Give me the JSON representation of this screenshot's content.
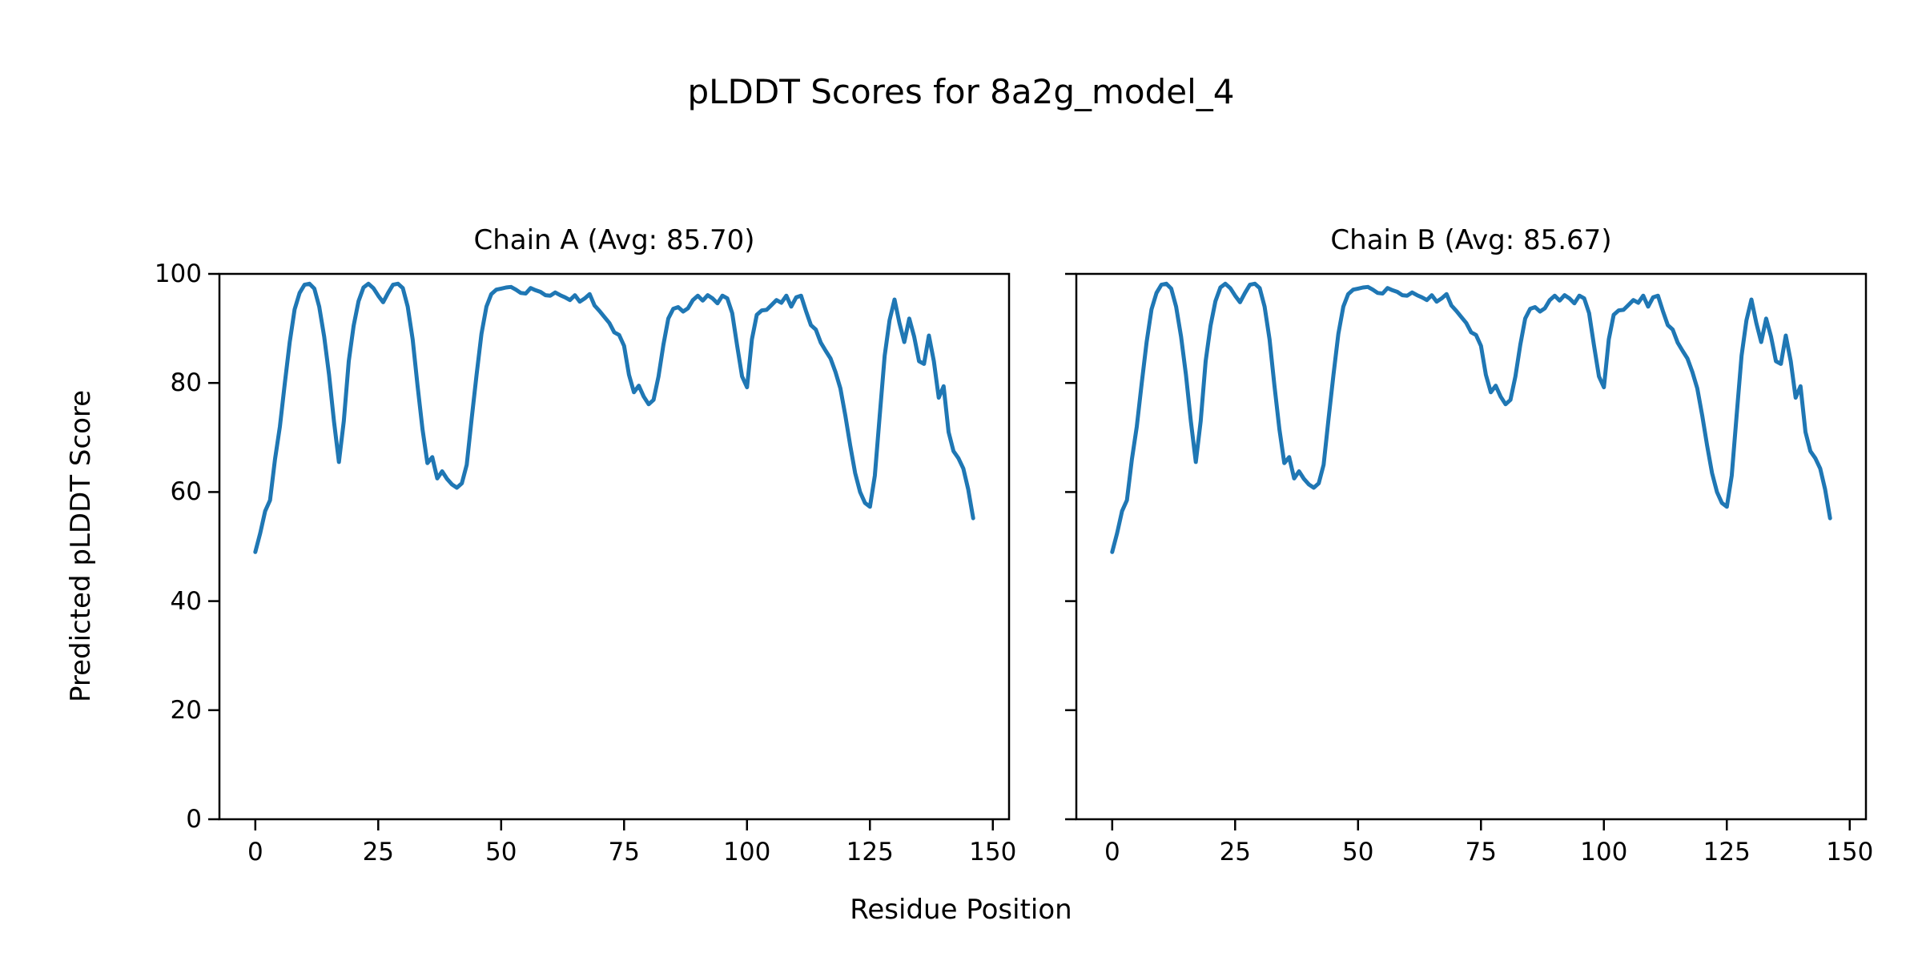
{
  "figure": {
    "title": "pLDDT Scores for 8a2g_model_4",
    "background": "#ffffff"
  },
  "style": {
    "line_color": "#1f77b4",
    "axis_color": "#000000",
    "text_color": "#000000"
  },
  "axes": {
    "xlabel": "Residue Position",
    "ylabel": "Predicted pLDDT Score",
    "x_ticks": [
      0,
      25,
      50,
      75,
      100,
      125,
      150
    ],
    "y_ticks": [
      0,
      20,
      40,
      60,
      80,
      100
    ],
    "xlim": [
      -7.3,
      153.3
    ],
    "ylim": [
      0,
      100
    ],
    "grid": false
  },
  "chart_data": [
    {
      "type": "line",
      "title": "Chain A (Avg: 85.70)",
      "series_name": "Chain A",
      "avg_label": "85.70",
      "x_start": 0,
      "x_step": 1,
      "values": [
        49.0,
        52.5,
        56.5,
        58.5,
        66.0,
        72.0,
        80.0,
        87.5,
        93.5,
        96.5,
        98.0,
        98.2,
        97.3,
        94.0,
        88.5,
        81.5,
        73.0,
        65.5,
        73.0,
        84.0,
        90.5,
        95.0,
        97.5,
        98.2,
        97.4,
        96.0,
        94.8,
        96.5,
        98.0,
        98.2,
        97.4,
        94.0,
        88.0,
        79.5,
        71.5,
        65.3,
        66.4,
        62.5,
        63.8,
        62.4,
        61.4,
        60.8,
        61.6,
        65.0,
        73.5,
        81.5,
        89.0,
        94.0,
        96.3,
        97.1,
        97.3,
        97.5,
        97.6,
        97.1,
        96.5,
        96.4,
        97.4,
        97.0,
        96.7,
        96.1,
        96.0,
        96.6,
        96.1,
        95.7,
        95.2,
        96.1,
        94.9,
        95.5,
        96.3,
        94.2,
        93.2,
        92.1,
        91.0,
        89.3,
        88.8,
        86.8,
        81.5,
        78.3,
        79.5,
        77.5,
        76.1,
        76.9,
        81.2,
        87.0,
        91.8,
        93.6,
        93.9,
        93.1,
        93.7,
        95.2,
        96.0,
        95.1,
        96.1,
        95.5,
        94.6,
        96.0,
        95.5,
        92.8,
        86.8,
        81.2,
        79.2,
        88.0,
        92.5,
        93.3,
        93.4,
        94.3,
        95.2,
        94.7,
        96.0,
        94.0,
        95.7,
        96.0,
        93.2,
        90.6,
        89.8,
        87.4,
        85.9,
        84.5,
        82.0,
        79.0,
        74.0,
        68.5,
        63.5,
        60.0,
        58.0,
        57.3,
        63.0,
        74.0,
        85.0,
        91.5,
        95.3,
        91.0,
        87.5,
        91.8,
        88.5,
        84.0,
        83.5,
        88.7,
        84.0,
        77.3,
        79.4,
        71.0,
        67.5,
        66.2,
        64.3,
        60.5,
        55.2
      ]
    },
    {
      "type": "line",
      "title": "Chain B (Avg: 85.67)",
      "series_name": "Chain B",
      "avg_label": "85.67",
      "x_start": 0,
      "x_step": 1,
      "values": [
        49.0,
        52.5,
        56.5,
        58.5,
        66.0,
        72.0,
        80.0,
        87.5,
        93.5,
        96.5,
        98.0,
        98.2,
        97.3,
        94.0,
        88.5,
        81.5,
        73.0,
        65.5,
        73.0,
        84.0,
        90.5,
        95.0,
        97.5,
        98.2,
        97.4,
        96.0,
        94.8,
        96.5,
        98.0,
        98.2,
        97.4,
        94.0,
        88.0,
        79.5,
        71.5,
        65.3,
        66.4,
        62.5,
        63.8,
        62.4,
        61.4,
        60.8,
        61.6,
        65.0,
        73.5,
        81.5,
        89.0,
        94.0,
        96.3,
        97.1,
        97.3,
        97.5,
        97.6,
        97.1,
        96.5,
        96.4,
        97.4,
        97.0,
        96.7,
        96.1,
        96.0,
        96.6,
        96.1,
        95.7,
        95.2,
        96.1,
        94.9,
        95.5,
        96.3,
        94.2,
        93.2,
        92.1,
        91.0,
        89.3,
        88.8,
        86.8,
        81.5,
        78.3,
        79.5,
        77.5,
        76.1,
        76.9,
        81.2,
        87.0,
        91.8,
        93.6,
        93.9,
        93.1,
        93.7,
        95.2,
        96.0,
        95.1,
        96.1,
        95.5,
        94.6,
        96.0,
        95.5,
        92.8,
        86.8,
        81.2,
        79.2,
        88.0,
        92.5,
        93.3,
        93.4,
        94.3,
        95.2,
        94.7,
        96.0,
        94.0,
        95.7,
        96.0,
        93.2,
        90.6,
        89.8,
        87.4,
        85.9,
        84.5,
        82.0,
        79.0,
        74.0,
        68.5,
        63.5,
        60.0,
        58.0,
        57.3,
        63.0,
        74.0,
        85.0,
        91.5,
        95.3,
        91.0,
        87.5,
        91.8,
        88.5,
        84.0,
        83.5,
        88.7,
        84.0,
        77.3,
        79.4,
        71.0,
        67.5,
        66.2,
        64.3,
        60.5,
        55.2
      ]
    }
  ]
}
